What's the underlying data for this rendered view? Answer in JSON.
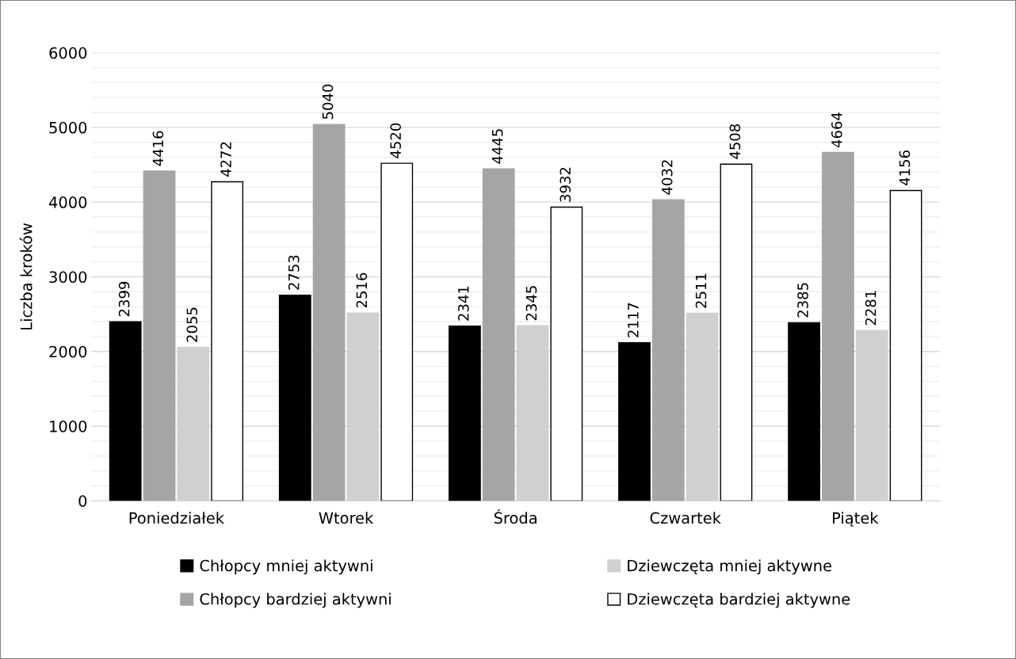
{
  "chart_data": {
    "type": "bar",
    "ylabel": "Liczba kroków",
    "categories": [
      "Poniedziałek",
      "Wtorek",
      "Środa",
      "Czwartek",
      "Piątek"
    ],
    "series": [
      {
        "name": "Chłopcy mniej aktywni",
        "color": "#000000",
        "values": [
          2399,
          2753,
          2341,
          2117,
          2385
        ]
      },
      {
        "name": "Chłopcy bardziej aktywni",
        "color": "#a5a5a5",
        "values": [
          4416,
          5040,
          4445,
          4032,
          4664
        ]
      },
      {
        "name": "Dziewczęta mniej aktywne",
        "color": "#d0d0d0",
        "values": [
          2055,
          2516,
          2345,
          2511,
          2281
        ]
      },
      {
        "name": "Dziewczęta bardziej aktywne",
        "color": "#ffffff",
        "values": [
          4272,
          4520,
          3932,
          4508,
          4156
        ]
      }
    ],
    "ylim": [
      0,
      6000
    ],
    "yticks": [
      0,
      {
        "value": 200,
        "label": null
      },
      {
        "value": 400,
        "label": null
      },
      {
        "value": 600,
        "label": null
      },
      {
        "value": 800,
        "label": null
      },
      1000,
      {
        "value": 1200,
        "label": null
      },
      {
        "value": 1400,
        "label": null
      },
      {
        "value": 1600,
        "label": null
      },
      {
        "value": 1800,
        "label": null
      },
      2000,
      {
        "value": 2200,
        "label": null
      },
      {
        "value": 2400,
        "label": null
      },
      {
        "value": 2600,
        "label": null
      },
      {
        "value": 2800,
        "label": null
      },
      3000,
      {
        "value": 3200,
        "label": null
      },
      {
        "value": 3400,
        "label": null
      },
      {
        "value": 3600,
        "label": null
      },
      {
        "value": 3800,
        "label": null
      },
      4000,
      {
        "value": 4200,
        "label": null
      },
      {
        "value": 4400,
        "label": null
      },
      {
        "value": 4600,
        "label": null
      },
      {
        "value": 4800,
        "label": null
      },
      5000,
      {
        "value": 5200,
        "label": null
      },
      {
        "value": 5400,
        "label": null
      },
      {
        "value": 5600,
        "label": null
      },
      {
        "value": 5800,
        "label": null
      },
      6000
    ],
    "grid": "y",
    "legend": "bottom",
    "data_labels": true
  }
}
